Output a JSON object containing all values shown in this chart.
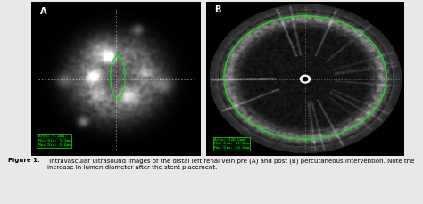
{
  "fig_width": 4.74,
  "fig_height": 2.29,
  "dpi": 100,
  "background_color": "#e8e8e6",
  "panel_bg": "#000000",
  "label_A": "A",
  "label_B": "B",
  "caption_bold": "Figure 1.",
  "caption_normal": " Intravascular ultrasound images of the distal left renal vein pre (A) and post (B) percutaneous intervention. Note the increase in lumen diameter after the stent placement.",
  "info_box_A": "Area: 5.1mm²\nMin Dia: 1.1mm\nMax Dia: 5.6mm",
  "info_box_B": "Area: 138.6mm²\nMin Dia: 11.8mm\nMax Dia: 14.6mm",
  "ellipse_color": "#22cc22",
  "seed": 42
}
